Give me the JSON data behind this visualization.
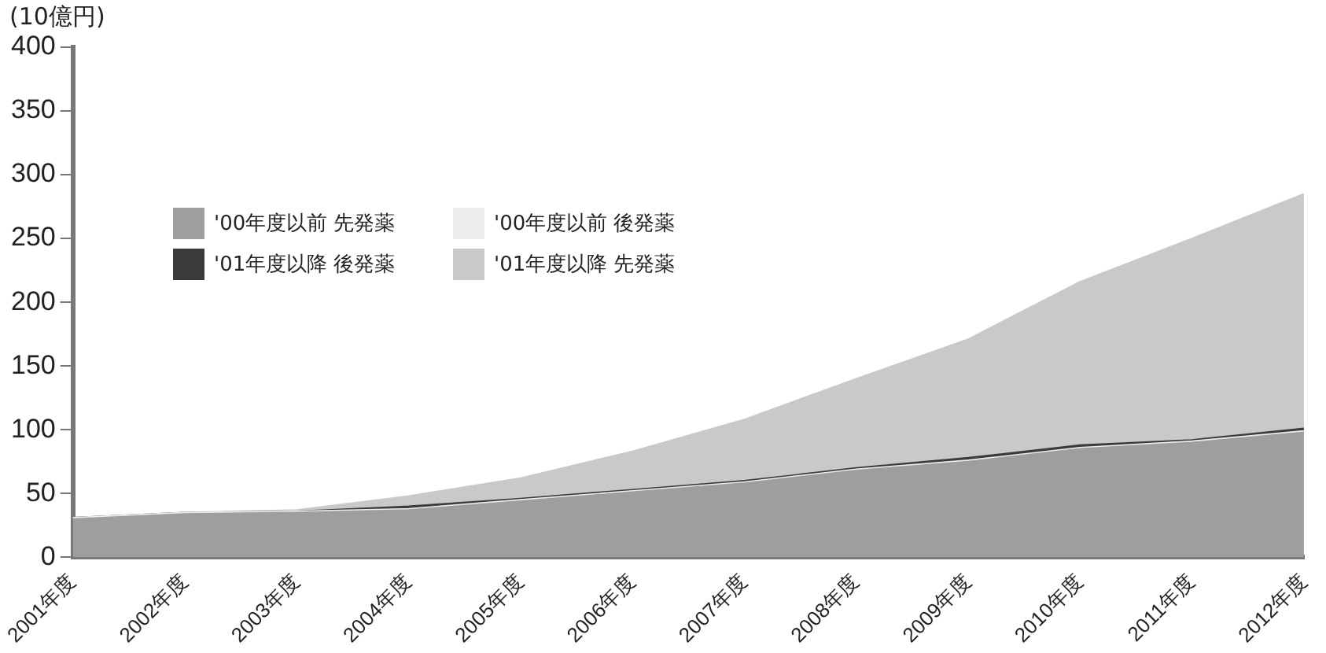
{
  "chart_data": {
    "type": "area",
    "ylabel": "(10億円)",
    "categories": [
      "2001年度",
      "2002年度",
      "2003年度",
      "2004年度",
      "2005年度",
      "2006年度",
      "2007年度",
      "2008年度",
      "2009年度",
      "2010年度",
      "2011年度",
      "2012年度"
    ],
    "stacked": true,
    "series": [
      {
        "name": "'00年度以前 先発薬",
        "color": "#9d9e9d",
        "values": [
          30,
          34,
          35,
          37,
          44,
          51,
          58,
          68,
          75,
          85,
          90,
          98
        ]
      },
      {
        "name": "'00年度以前 後発薬",
        "color": "#ececec",
        "values": [
          1,
          1,
          1,
          1,
          1,
          1,
          1,
          1,
          1,
          1,
          1,
          1
        ]
      },
      {
        "name": "'01年度以降 後発薬",
        "color": "#3d3a3a",
        "values": [
          0,
          0,
          0,
          2,
          1,
          1,
          1,
          1,
          2,
          2,
          1,
          2
        ]
      },
      {
        "name": "'01年度以降 先発薬",
        "color": "#c8c9c8",
        "values": [
          0,
          0,
          1,
          8,
          16,
          30,
          48,
          70,
          93,
          128,
          158,
          184
        ]
      }
    ],
    "ylim": [
      0,
      400
    ],
    "yticks": [
      0,
      50,
      100,
      150,
      200,
      250,
      300,
      350,
      400
    ],
    "grid": false,
    "legend": "top left"
  }
}
